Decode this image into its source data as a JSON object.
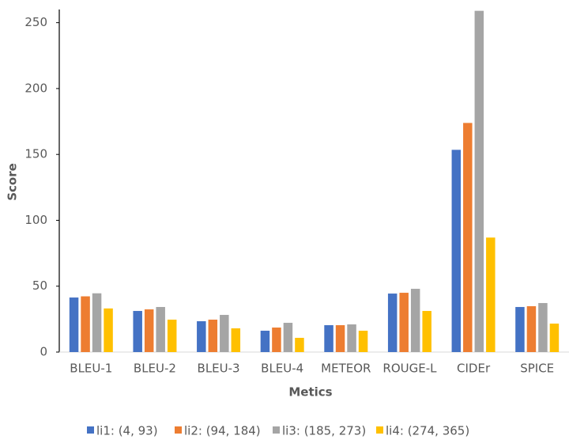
{
  "chart_data": {
    "type": "bar",
    "x_label": "Metics",
    "y_label": "Score",
    "categories": [
      "BLEU-1",
      "BLEU-2",
      "BLEU-3",
      "BLEU-4",
      "METEOR",
      "ROUGE-L",
      "CIDEr",
      "SPICE"
    ],
    "series": [
      {
        "name": "li1: (4, 93)",
        "color": "#4472c4",
        "values": [
          41.4,
          31.2,
          23.4,
          16.2,
          20.4,
          44.4,
          153.5,
          34.2
        ]
      },
      {
        "name": "li2: (94, 184)",
        "color": "#ed7d31",
        "values": [
          42.3,
          32.4,
          24.6,
          18.6,
          20.4,
          45,
          173.9,
          34.8
        ]
      },
      {
        "name": "li3: (185, 273)",
        "color": "#a5a5a5",
        "values": [
          44.6,
          34.2,
          28.2,
          22.2,
          21,
          48,
          259,
          37.2
        ]
      },
      {
        "name": "li4: (274, 365)",
        "color": "#ffc000",
        "values": [
          33.1,
          24.6,
          18,
          10.8,
          16.2,
          31.2,
          86.9,
          21.6
        ]
      }
    ],
    "ylim": [
      0,
      260
    ],
    "yticks": [
      0,
      50,
      100,
      150,
      200,
      250
    ],
    "grid": false,
    "legend": "bottom"
  }
}
